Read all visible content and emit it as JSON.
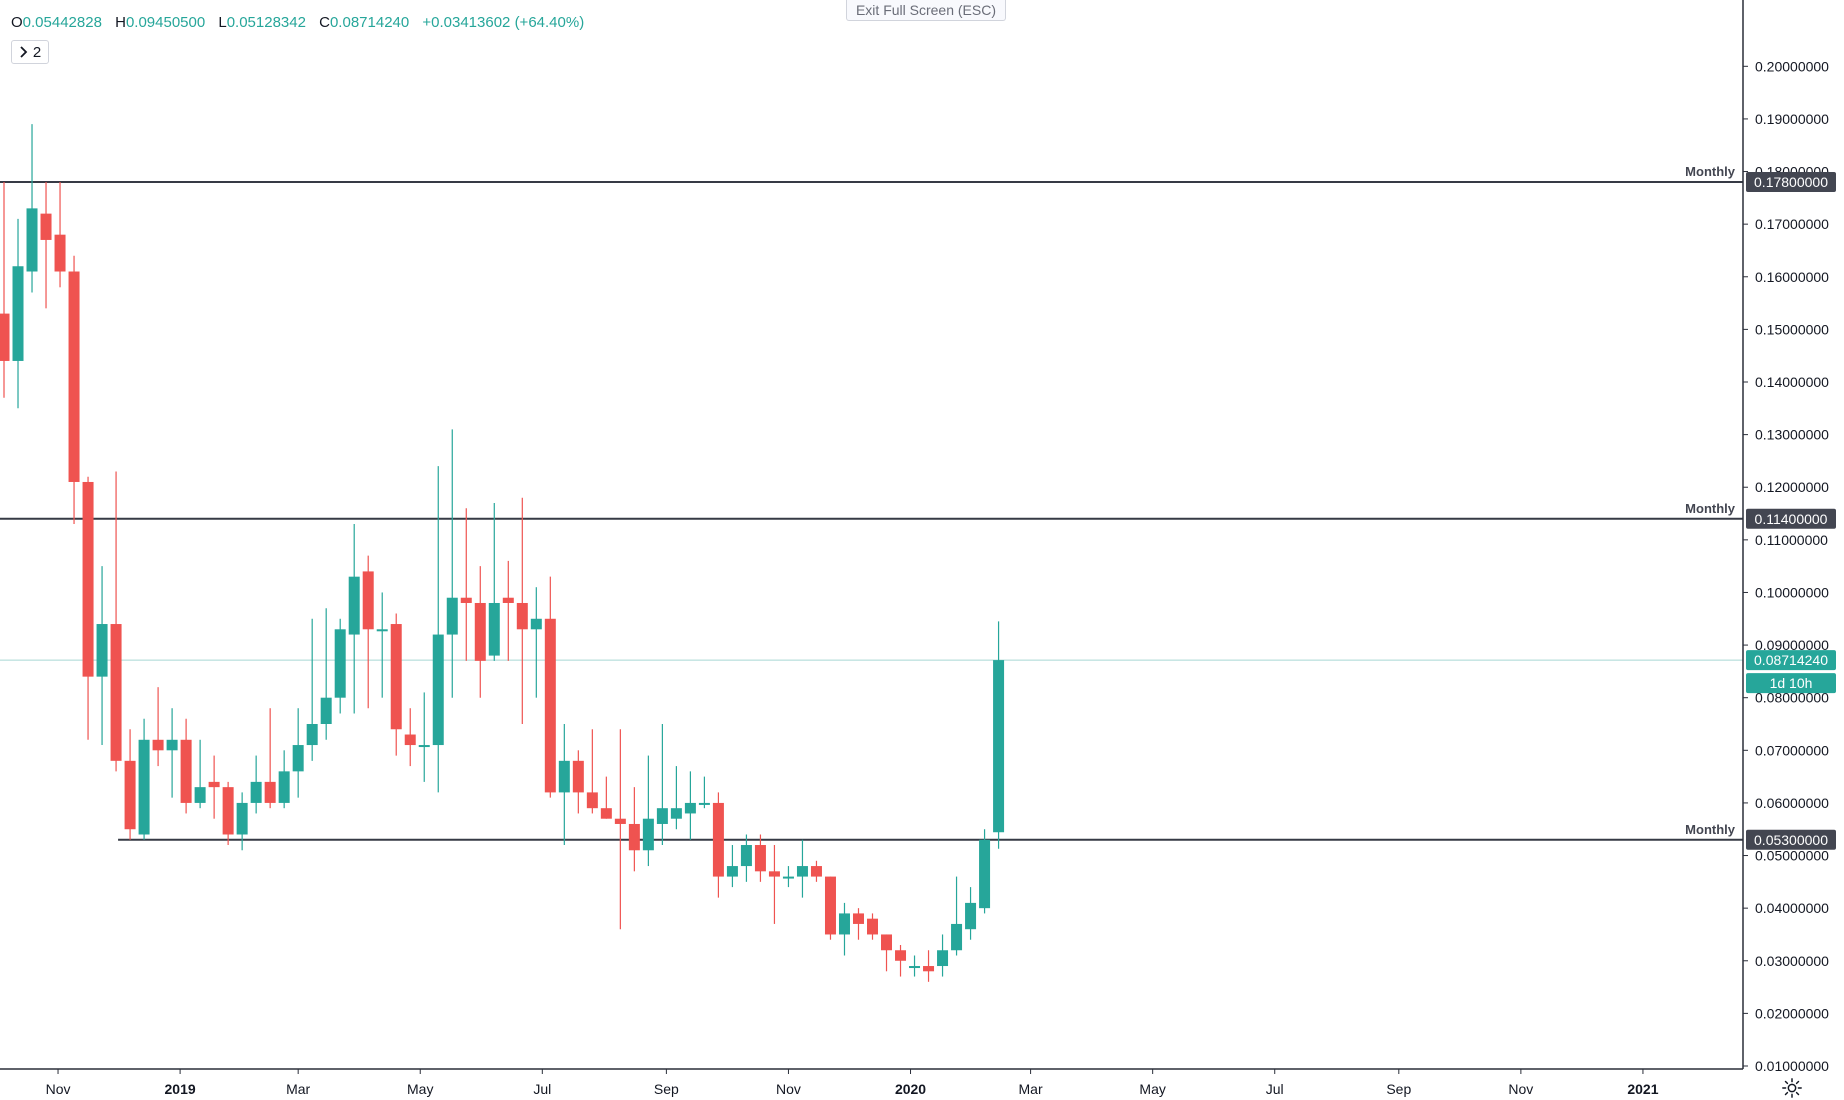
{
  "header": {
    "ohlc": [
      {
        "key": "O",
        "value": "0.05442828"
      },
      {
        "key": "H",
        "value": "0.09450500"
      },
      {
        "key": "L",
        "value": "0.05128342"
      },
      {
        "key": "C",
        "value": "0.08714240"
      }
    ],
    "change": "+0.03413602 (+64.40%)",
    "indicator_toggle_label": "2",
    "exit_fullscreen_label": "Exit Full Screen (ESC)",
    "settings_icon": "gear-icon"
  },
  "colors": {
    "up": "#26a69a",
    "down": "#ef5350",
    "level_line": "#363a45",
    "last_price_line": "#a6d7d3",
    "axis_text": "#131722"
  },
  "chart_data": {
    "type": "candlestick",
    "interval": "weekly",
    "y_range": [
      0.01,
      0.205
    ],
    "x_range": [
      "2018-10-03",
      "2021-02-20"
    ],
    "y_ticks": [
      "0.01000000",
      "0.02000000",
      "0.03000000",
      "0.04000000",
      "0.05000000",
      "0.06000000",
      "0.07000000",
      "0.08000000",
      "0.09000000",
      "0.10000000",
      "0.11000000",
      "0.12000000",
      "0.13000000",
      "0.14000000",
      "0.15000000",
      "0.16000000",
      "0.17000000",
      "0.18000000",
      "0.19000000",
      "0.20000000"
    ],
    "x_ticks": [
      {
        "label": "Nov",
        "date": "2018-11-01",
        "bold": false
      },
      {
        "label": "2019",
        "date": "2019-01-01",
        "bold": true
      },
      {
        "label": "Mar",
        "date": "2019-03-01",
        "bold": false
      },
      {
        "label": "May",
        "date": "2019-05-01",
        "bold": false
      },
      {
        "label": "Jul",
        "date": "2019-07-01",
        "bold": false
      },
      {
        "label": "Sep",
        "date": "2019-09-01",
        "bold": false
      },
      {
        "label": "Nov",
        "date": "2019-11-01",
        "bold": false
      },
      {
        "label": "2020",
        "date": "2020-01-01",
        "bold": true
      },
      {
        "label": "Mar",
        "date": "2020-03-01",
        "bold": false
      },
      {
        "label": "May",
        "date": "2020-05-01",
        "bold": false
      },
      {
        "label": "Jul",
        "date": "2020-07-01",
        "bold": false
      },
      {
        "label": "Sep",
        "date": "2020-09-01",
        "bold": false
      },
      {
        "label": "Nov",
        "date": "2020-11-01",
        "bold": false
      },
      {
        "label": "2021",
        "date": "2021-01-01",
        "bold": true
      }
    ],
    "levels": [
      {
        "label": "Monthly",
        "value": 0.178,
        "price_label": "0.17800000",
        "start": "2018-10-03"
      },
      {
        "label": "Monthly",
        "value": 0.114,
        "price_label": "0.11400000",
        "start": "2018-10-03"
      },
      {
        "label": "Monthly",
        "value": 0.053,
        "price_label": "0.05300000",
        "start": "2018-12-01"
      }
    ],
    "last_price": {
      "value": 0.0871424,
      "label": "0.08714240",
      "countdown": "1d 10h"
    },
    "candles": [
      {
        "d": "2018-10-05",
        "o": 0.153,
        "h": 0.178,
        "l": 0.137,
        "c": 0.144
      },
      {
        "d": "2018-10-12",
        "o": 0.144,
        "h": 0.171,
        "l": 0.135,
        "c": 0.162
      },
      {
        "d": "2018-10-19",
        "o": 0.161,
        "h": 0.189,
        "l": 0.157,
        "c": 0.173
      },
      {
        "d": "2018-10-26",
        "o": 0.172,
        "h": 0.178,
        "l": 0.154,
        "c": 0.167
      },
      {
        "d": "2018-11-02",
        "o": 0.168,
        "h": 0.178,
        "l": 0.158,
        "c": 0.161
      },
      {
        "d": "2018-11-09",
        "o": 0.161,
        "h": 0.164,
        "l": 0.113,
        "c": 0.121
      },
      {
        "d": "2018-11-16",
        "o": 0.121,
        "h": 0.122,
        "l": 0.072,
        "c": 0.084
      },
      {
        "d": "2018-11-23",
        "o": 0.084,
        "h": 0.105,
        "l": 0.071,
        "c": 0.094
      },
      {
        "d": "2018-11-30",
        "o": 0.094,
        "h": 0.123,
        "l": 0.066,
        "c": 0.068
      },
      {
        "d": "2018-12-07",
        "o": 0.068,
        "h": 0.074,
        "l": 0.053,
        "c": 0.055
      },
      {
        "d": "2018-12-14",
        "o": 0.054,
        "h": 0.076,
        "l": 0.053,
        "c": 0.072
      },
      {
        "d": "2018-12-21",
        "o": 0.072,
        "h": 0.082,
        "l": 0.067,
        "c": 0.07
      },
      {
        "d": "2018-12-28",
        "o": 0.07,
        "h": 0.078,
        "l": 0.061,
        "c": 0.072
      },
      {
        "d": "2019-01-04",
        "o": 0.072,
        "h": 0.076,
        "l": 0.058,
        "c": 0.06
      },
      {
        "d": "2019-01-11",
        "o": 0.06,
        "h": 0.072,
        "l": 0.059,
        "c": 0.063
      },
      {
        "d": "2019-01-18",
        "o": 0.064,
        "h": 0.069,
        "l": 0.057,
        "c": 0.063
      },
      {
        "d": "2019-01-25",
        "o": 0.063,
        "h": 0.064,
        "l": 0.052,
        "c": 0.054
      },
      {
        "d": "2019-02-01",
        "o": 0.054,
        "h": 0.062,
        "l": 0.051,
        "c": 0.06
      },
      {
        "d": "2019-02-08",
        "o": 0.06,
        "h": 0.069,
        "l": 0.058,
        "c": 0.064
      },
      {
        "d": "2019-02-15",
        "o": 0.064,
        "h": 0.078,
        "l": 0.059,
        "c": 0.06
      },
      {
        "d": "2019-02-22",
        "o": 0.06,
        "h": 0.07,
        "l": 0.059,
        "c": 0.066
      },
      {
        "d": "2019-03-01",
        "o": 0.066,
        "h": 0.078,
        "l": 0.061,
        "c": 0.071
      },
      {
        "d": "2019-03-08",
        "o": 0.071,
        "h": 0.095,
        "l": 0.068,
        "c": 0.075
      },
      {
        "d": "2019-03-15",
        "o": 0.075,
        "h": 0.097,
        "l": 0.072,
        "c": 0.08
      },
      {
        "d": "2019-03-22",
        "o": 0.08,
        "h": 0.095,
        "l": 0.077,
        "c": 0.093
      },
      {
        "d": "2019-03-29",
        "o": 0.092,
        "h": 0.113,
        "l": 0.077,
        "c": 0.103
      },
      {
        "d": "2019-04-05",
        "o": 0.104,
        "h": 0.107,
        "l": 0.078,
        "c": 0.093
      },
      {
        "d": "2019-04-12",
        "o": 0.093,
        "h": 0.1,
        "l": 0.08,
        "c": 0.093
      },
      {
        "d": "2019-04-19",
        "o": 0.094,
        "h": 0.096,
        "l": 0.069,
        "c": 0.074
      },
      {
        "d": "2019-04-26",
        "o": 0.073,
        "h": 0.078,
        "l": 0.067,
        "c": 0.071
      },
      {
        "d": "2019-05-03",
        "o": 0.071,
        "h": 0.081,
        "l": 0.064,
        "c": 0.071
      },
      {
        "d": "2019-05-10",
        "o": 0.071,
        "h": 0.124,
        "l": 0.062,
        "c": 0.092
      },
      {
        "d": "2019-05-17",
        "o": 0.092,
        "h": 0.131,
        "l": 0.08,
        "c": 0.099
      },
      {
        "d": "2019-05-24",
        "o": 0.099,
        "h": 0.116,
        "l": 0.087,
        "c": 0.098
      },
      {
        "d": "2019-05-31",
        "o": 0.098,
        "h": 0.105,
        "l": 0.08,
        "c": 0.087
      },
      {
        "d": "2019-06-07",
        "o": 0.088,
        "h": 0.117,
        "l": 0.087,
        "c": 0.098
      },
      {
        "d": "2019-06-14",
        "o": 0.099,
        "h": 0.106,
        "l": 0.087,
        "c": 0.098
      },
      {
        "d": "2019-06-21",
        "o": 0.098,
        "h": 0.118,
        "l": 0.075,
        "c": 0.093
      },
      {
        "d": "2019-06-28",
        "o": 0.093,
        "h": 0.101,
        "l": 0.08,
        "c": 0.095
      },
      {
        "d": "2019-07-05",
        "o": 0.095,
        "h": 0.103,
        "l": 0.061,
        "c": 0.062
      },
      {
        "d": "2019-07-12",
        "o": 0.062,
        "h": 0.075,
        "l": 0.052,
        "c": 0.068
      },
      {
        "d": "2019-07-19",
        "o": 0.068,
        "h": 0.07,
        "l": 0.058,
        "c": 0.062
      },
      {
        "d": "2019-07-26",
        "o": 0.062,
        "h": 0.074,
        "l": 0.058,
        "c": 0.059
      },
      {
        "d": "2019-08-02",
        "o": 0.059,
        "h": 0.065,
        "l": 0.057,
        "c": 0.057
      },
      {
        "d": "2019-08-09",
        "o": 0.057,
        "h": 0.074,
        "l": 0.036,
        "c": 0.056
      },
      {
        "d": "2019-08-16",
        "o": 0.056,
        "h": 0.063,
        "l": 0.047,
        "c": 0.051
      },
      {
        "d": "2019-08-23",
        "o": 0.051,
        "h": 0.069,
        "l": 0.048,
        "c": 0.057
      },
      {
        "d": "2019-08-30",
        "o": 0.056,
        "h": 0.075,
        "l": 0.052,
        "c": 0.059
      },
      {
        "d": "2019-09-06",
        "o": 0.057,
        "h": 0.067,
        "l": 0.055,
        "c": 0.059
      },
      {
        "d": "2019-09-13",
        "o": 0.058,
        "h": 0.066,
        "l": 0.053,
        "c": 0.06
      },
      {
        "d": "2019-09-20",
        "o": 0.06,
        "h": 0.065,
        "l": 0.059,
        "c": 0.06
      },
      {
        "d": "2019-09-27",
        "o": 0.06,
        "h": 0.062,
        "l": 0.042,
        "c": 0.046
      },
      {
        "d": "2019-10-04",
        "o": 0.046,
        "h": 0.052,
        "l": 0.044,
        "c": 0.048
      },
      {
        "d": "2019-10-11",
        "o": 0.048,
        "h": 0.054,
        "l": 0.045,
        "c": 0.052
      },
      {
        "d": "2019-10-18",
        "o": 0.052,
        "h": 0.054,
        "l": 0.045,
        "c": 0.047
      },
      {
        "d": "2019-10-25",
        "o": 0.047,
        "h": 0.052,
        "l": 0.037,
        "c": 0.046
      },
      {
        "d": "2019-11-01",
        "o": 0.046,
        "h": 0.048,
        "l": 0.044,
        "c": 0.046
      },
      {
        "d": "2019-11-08",
        "o": 0.046,
        "h": 0.053,
        "l": 0.042,
        "c": 0.048
      },
      {
        "d": "2019-11-15",
        "o": 0.048,
        "h": 0.049,
        "l": 0.045,
        "c": 0.046
      },
      {
        "d": "2019-11-22",
        "o": 0.046,
        "h": 0.046,
        "l": 0.034,
        "c": 0.035
      },
      {
        "d": "2019-11-29",
        "o": 0.035,
        "h": 0.041,
        "l": 0.031,
        "c": 0.039
      },
      {
        "d": "2019-12-06",
        "o": 0.039,
        "h": 0.04,
        "l": 0.034,
        "c": 0.037
      },
      {
        "d": "2019-12-13",
        "o": 0.038,
        "h": 0.039,
        "l": 0.034,
        "c": 0.035
      },
      {
        "d": "2019-12-20",
        "o": 0.035,
        "h": 0.035,
        "l": 0.028,
        "c": 0.032
      },
      {
        "d": "2019-12-27",
        "o": 0.032,
        "h": 0.033,
        "l": 0.027,
        "c": 0.03
      },
      {
        "d": "2020-01-03",
        "o": 0.029,
        "h": 0.031,
        "l": 0.027,
        "c": 0.029
      },
      {
        "d": "2020-01-10",
        "o": 0.029,
        "h": 0.032,
        "l": 0.026,
        "c": 0.028
      },
      {
        "d": "2020-01-17",
        "o": 0.029,
        "h": 0.035,
        "l": 0.027,
        "c": 0.032
      },
      {
        "d": "2020-01-24",
        "o": 0.032,
        "h": 0.046,
        "l": 0.031,
        "c": 0.037
      },
      {
        "d": "2020-01-31",
        "o": 0.036,
        "h": 0.044,
        "l": 0.034,
        "c": 0.041
      },
      {
        "d": "2020-02-07",
        "o": 0.04,
        "h": 0.055,
        "l": 0.039,
        "c": 0.053
      },
      {
        "d": "2020-02-14",
        "o": 0.05442828,
        "h": 0.094505,
        "l": 0.05128342,
        "c": 0.0871424
      }
    ]
  }
}
